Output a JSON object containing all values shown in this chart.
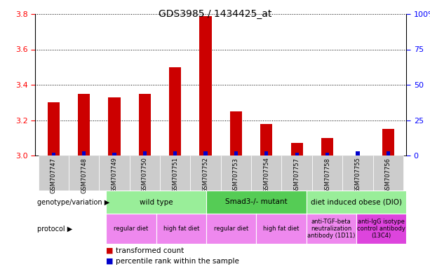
{
  "title": "GDS3985 / 1434425_at",
  "samples": [
    "GSM707747",
    "GSM707748",
    "GSM707749",
    "GSM707750",
    "GSM707751",
    "GSM707752",
    "GSM707753",
    "GSM707754",
    "GSM707757",
    "GSM707758",
    "GSM707755",
    "GSM707756"
  ],
  "transformed_count": [
    3.3,
    3.35,
    3.33,
    3.35,
    3.5,
    3.79,
    3.25,
    3.18,
    3.07,
    3.1,
    3.0,
    3.15
  ],
  "percentile_rank": [
    2,
    3,
    2,
    3,
    3,
    3,
    3,
    3,
    2,
    2,
    3,
    3
  ],
  "bar_color_red": "#cc0000",
  "bar_color_blue": "#0000cc",
  "ylim_left": [
    3.0,
    3.8
  ],
  "ylim_right": [
    0,
    100
  ],
  "yticks_left": [
    3.0,
    3.2,
    3.4,
    3.6,
    3.8
  ],
  "yticks_right": [
    0,
    25,
    50,
    75,
    100
  ],
  "genotype_groups": [
    {
      "label": "wild type",
      "start": 0,
      "end": 4,
      "color": "#99ee99"
    },
    {
      "label": "Smad3-/- mutant",
      "start": 4,
      "end": 8,
      "color": "#55cc55"
    },
    {
      "label": "diet induced obese (DIO)",
      "start": 8,
      "end": 12,
      "color": "#99ee99"
    }
  ],
  "protocol_groups": [
    {
      "label": "regular diet",
      "start": 0,
      "end": 2,
      "color": "#ee88ee"
    },
    {
      "label": "high fat diet",
      "start": 2,
      "end": 4,
      "color": "#ee88ee"
    },
    {
      "label": "regular diet",
      "start": 4,
      "end": 6,
      "color": "#ee88ee"
    },
    {
      "label": "high fat diet",
      "start": 6,
      "end": 8,
      "color": "#ee88ee"
    },
    {
      "label": "anti-TGF-beta\nneutralization\nantibody (1D11)",
      "start": 8,
      "end": 10,
      "color": "#ee88ee"
    },
    {
      "label": "anti-IgG isotype\ncontrol antibody\n(13C4)",
      "start": 10,
      "end": 12,
      "color": "#dd44dd"
    }
  ],
  "genotype_label": "genotype/variation",
  "protocol_label": "protocol",
  "legend_red": "transformed count",
  "legend_blue": "percentile rank within the sample",
  "bar_width": 0.4,
  "percentile_bar_width": 0.12,
  "sample_cell_color": "#cccccc",
  "background_color": "#ffffff"
}
